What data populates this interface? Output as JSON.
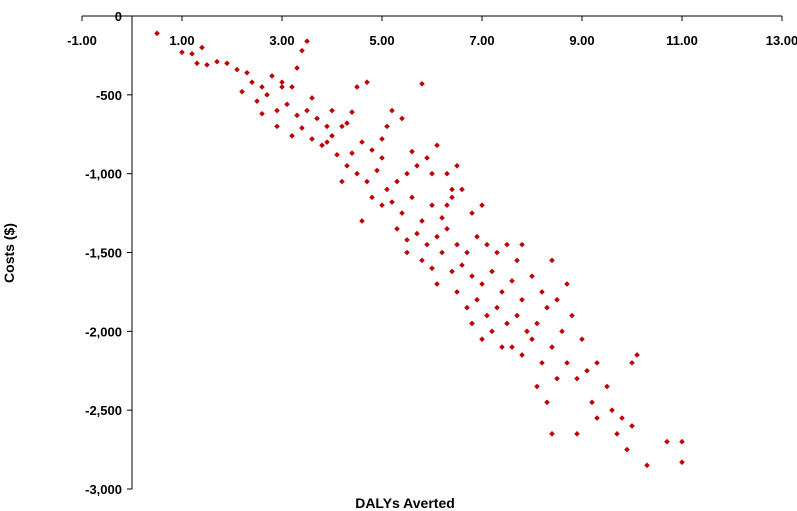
{
  "chart_data": {
    "type": "scatter",
    "title": "",
    "xlabel": "DALYs Averted",
    "ylabel": "Costs ($)",
    "xlim": [
      -1.0,
      13.0
    ],
    "ylim": [
      -3000,
      0
    ],
    "x_ticks": [
      -1.0,
      1.0,
      3.0,
      5.0,
      7.0,
      9.0,
      11.0,
      13.0
    ],
    "x_tick_labels": [
      "-1.00",
      "1.00",
      "3.00",
      "5.00",
      "7.00",
      "9.00",
      "11.00",
      "13.00"
    ],
    "y_ticks": [
      0,
      -500,
      -1000,
      -1500,
      -2000,
      -2500,
      -3000
    ],
    "y_tick_labels": [
      "0",
      "-500",
      "-1,000",
      "-1,500",
      "-2,000",
      "-2,500",
      "-3,000"
    ],
    "x_axis_position": "top (at y = 0)",
    "grid": false,
    "legend": "none",
    "marker": "diamond",
    "marker_color": "#c00000",
    "series": [
      {
        "points": [
          [
            0.5,
            -110
          ],
          [
            1.0,
            -230
          ],
          [
            1.2,
            -240
          ],
          [
            1.3,
            -300
          ],
          [
            1.4,
            -200
          ],
          [
            1.5,
            -310
          ],
          [
            1.7,
            -290
          ],
          [
            1.9,
            -300
          ],
          [
            2.1,
            -340
          ],
          [
            2.3,
            -360
          ],
          [
            2.4,
            -420
          ],
          [
            2.6,
            -450
          ],
          [
            2.8,
            -380
          ],
          [
            3.0,
            -420
          ],
          [
            3.2,
            -450
          ],
          [
            3.3,
            -330
          ],
          [
            3.4,
            -220
          ],
          [
            3.5,
            -160
          ],
          [
            2.2,
            -480
          ],
          [
            2.5,
            -540
          ],
          [
            2.7,
            -500
          ],
          [
            2.9,
            -600
          ],
          [
            3.1,
            -560
          ],
          [
            3.3,
            -630
          ],
          [
            3.5,
            -600
          ],
          [
            3.7,
            -650
          ],
          [
            3.9,
            -700
          ],
          [
            2.6,
            -620
          ],
          [
            2.9,
            -700
          ],
          [
            3.2,
            -760
          ],
          [
            3.4,
            -710
          ],
          [
            3.6,
            -780
          ],
          [
            3.8,
            -820
          ],
          [
            4.0,
            -760
          ],
          [
            4.2,
            -700
          ],
          [
            4.4,
            -610
          ],
          [
            4.5,
            -450
          ],
          [
            4.7,
            -420
          ],
          [
            4.6,
            -800
          ],
          [
            4.8,
            -850
          ],
          [
            5.0,
            -900
          ],
          [
            5.1,
            -700
          ],
          [
            5.2,
            -600
          ],
          [
            5.4,
            -650
          ],
          [
            4.1,
            -880
          ],
          [
            4.3,
            -950
          ],
          [
            4.5,
            -1000
          ],
          [
            4.7,
            -1050
          ],
          [
            4.9,
            -980
          ],
          [
            5.1,
            -1100
          ],
          [
            5.3,
            -1050
          ],
          [
            5.5,
            -1000
          ],
          [
            5.7,
            -950
          ],
          [
            5.9,
            -900
          ],
          [
            6.1,
            -820
          ],
          [
            6.3,
            -1000
          ],
          [
            6.5,
            -950
          ],
          [
            4.8,
            -1150
          ],
          [
            5.0,
            -1200
          ],
          [
            5.2,
            -1180
          ],
          [
            5.4,
            -1250
          ],
          [
            5.6,
            -1150
          ],
          [
            5.8,
            -1300
          ],
          [
            6.0,
            -1200
          ],
          [
            6.2,
            -1280
          ],
          [
            6.4,
            -1150
          ],
          [
            6.6,
            -1100
          ],
          [
            6.8,
            -1250
          ],
          [
            7.0,
            -1200
          ],
          [
            5.3,
            -1350
          ],
          [
            5.5,
            -1420
          ],
          [
            5.7,
            -1380
          ],
          [
            5.9,
            -1450
          ],
          [
            6.1,
            -1400
          ],
          [
            6.3,
            -1350
          ],
          [
            6.5,
            -1450
          ],
          [
            6.7,
            -1500
          ],
          [
            6.9,
            -1400
          ],
          [
            7.1,
            -1450
          ],
          [
            7.3,
            -1500
          ],
          [
            7.5,
            -1450
          ],
          [
            7.7,
            -1550
          ],
          [
            5.8,
            -1550
          ],
          [
            6.0,
            -1600
          ],
          [
            6.2,
            -1500
          ],
          [
            6.4,
            -1620
          ],
          [
            6.6,
            -1580
          ],
          [
            6.8,
            -1650
          ],
          [
            7.0,
            -1700
          ],
          [
            7.2,
            -1620
          ],
          [
            7.4,
            -1750
          ],
          [
            7.6,
            -1680
          ],
          [
            7.8,
            -1800
          ],
          [
            8.0,
            -1650
          ],
          [
            8.2,
            -1750
          ],
          [
            6.5,
            -1750
          ],
          [
            6.7,
            -1850
          ],
          [
            6.9,
            -1800
          ],
          [
            7.1,
            -1900
          ],
          [
            7.3,
            -1850
          ],
          [
            7.5,
            -1950
          ],
          [
            7.7,
            -1900
          ],
          [
            7.9,
            -2000
          ],
          [
            8.1,
            -1950
          ],
          [
            8.3,
            -1850
          ],
          [
            8.5,
            -1800
          ],
          [
            8.7,
            -1700
          ],
          [
            7.0,
            -2050
          ],
          [
            7.4,
            -2100
          ],
          [
            7.8,
            -2150
          ],
          [
            8.0,
            -2050
          ],
          [
            8.2,
            -2200
          ],
          [
            8.4,
            -2100
          ],
          [
            8.6,
            -2000
          ],
          [
            8.8,
            -1900
          ],
          [
            9.0,
            -2050
          ],
          [
            8.1,
            -2350
          ],
          [
            8.3,
            -2450
          ],
          [
            8.5,
            -2300
          ],
          [
            8.7,
            -2200
          ],
          [
            8.9,
            -2300
          ],
          [
            9.1,
            -2250
          ],
          [
            9.3,
            -2200
          ],
          [
            9.5,
            -2350
          ],
          [
            8.4,
            -2650
          ],
          [
            8.9,
            -2650
          ],
          [
            9.3,
            -2550
          ],
          [
            9.6,
            -2500
          ],
          [
            9.8,
            -2550
          ],
          [
            10.0,
            -2600
          ],
          [
            10.1,
            -2150
          ],
          [
            10.0,
            -2200
          ],
          [
            9.9,
            -2750
          ],
          [
            10.3,
            -2850
          ],
          [
            10.7,
            -2700
          ],
          [
            11.0,
            -2700
          ],
          [
            11.0,
            -2830
          ],
          [
            3.0,
            -450
          ],
          [
            3.6,
            -520
          ],
          [
            4.0,
            -600
          ],
          [
            4.3,
            -680
          ],
          [
            5.0,
            -780
          ],
          [
            5.6,
            -860
          ],
          [
            6.0,
            -1000
          ],
          [
            6.4,
            -1100
          ],
          [
            4.2,
            -1050
          ],
          [
            4.6,
            -1300
          ],
          [
            5.8,
            -430
          ],
          [
            3.9,
            -800
          ],
          [
            4.4,
            -870
          ],
          [
            5.5,
            -1500
          ],
          [
            6.1,
            -1700
          ],
          [
            6.8,
            -1950
          ],
          [
            7.2,
            -2000
          ],
          [
            7.6,
            -2100
          ],
          [
            6.3,
            -1200
          ],
          [
            7.8,
            -1450
          ],
          [
            8.4,
            -1550
          ],
          [
            9.2,
            -2450
          ],
          [
            9.7,
            -2650
          ]
        ]
      }
    ]
  }
}
